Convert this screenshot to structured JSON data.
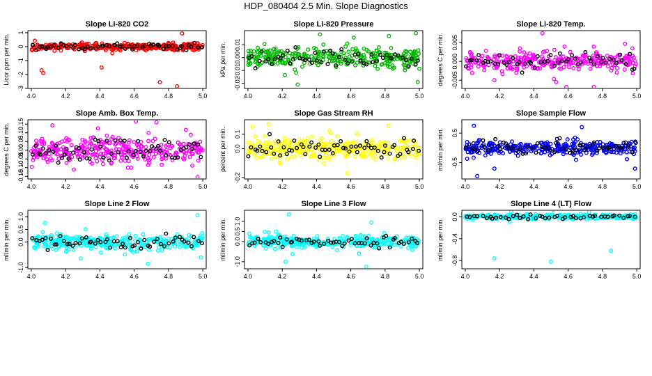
{
  "page_title": "HDP_080404  2.5 Min. Slope Diagnostics",
  "chart_data": [
    {
      "type": "scatter",
      "title": "Slope Li-820 CO2",
      "ylabel": "Licor ppm per min.",
      "color": "#ff0000",
      "xlim": [
        3.98,
        5.02
      ],
      "ylim": [
        -3.0,
        1.15
      ],
      "xticks": [
        "4.0",
        "4.2",
        "4.4",
        "4.6",
        "4.8",
        "5.0"
      ],
      "yticks": [
        "-3",
        "-2",
        "-1",
        "0",
        "1"
      ],
      "spread": 0.22,
      "n_points": 320,
      "outliers": [
        [
          4.06,
          -1.7
        ],
        [
          4.07,
          -1.9
        ],
        [
          4.41,
          -1.5
        ],
        [
          4.75,
          -2.55
        ],
        [
          4.85,
          -2.85
        ],
        [
          4.88,
          0.95
        ]
      ],
      "black_points": 55
    },
    {
      "type": "scatter",
      "title": "Slope Li-820 Pressure",
      "ylabel": "kPa per min.",
      "color": "#00bb00",
      "xlim": [
        3.98,
        5.02
      ],
      "ylim": [
        -0.024,
        0.021
      ],
      "xticks": [
        "4.0",
        "4.2",
        "4.4",
        "4.6",
        "4.8",
        "5.0"
      ],
      "yticks": [
        "-0.02",
        "-0.01",
        "0.00",
        "0.01"
      ],
      "spread": 0.0065,
      "n_points": 320,
      "outliers": [
        [
          4.29,
          -0.021
        ],
        [
          4.42,
          0.018
        ],
        [
          4.98,
          0.019
        ],
        [
          4.99,
          -0.019
        ]
      ],
      "black_points": 55
    },
    {
      "type": "scatter",
      "title": "Slope Li-820 Temp.",
      "ylabel": "degrees C per min.",
      "color": "#ff00ff",
      "xlim": [
        3.98,
        5.02
      ],
      "ylim": [
        -0.0072,
        0.0082
      ],
      "xticks": [
        "4.0",
        "4.2",
        "4.4",
        "4.6",
        "4.8",
        "5.0"
      ],
      "yticks": [
        "-0.005",
        "0.000",
        "0.005"
      ],
      "spread": 0.0022,
      "n_points": 300,
      "outliers": [
        [
          4.45,
          0.0075
        ],
        [
          4.17,
          -0.005
        ],
        [
          4.53,
          -0.0055
        ],
        [
          4.75,
          -0.0068
        ]
      ],
      "black_points": 55
    },
    {
      "type": "scatter",
      "title": "Slope Amb. Box Temp.",
      "ylabel": "degrees C per min.",
      "color": "#ff00ff",
      "xlim": [
        3.98,
        5.02
      ],
      "ylim": [
        -0.165,
        0.175
      ],
      "xticks": [
        "4.0",
        "4.2",
        "4.4",
        "4.6",
        "4.8",
        "5.0"
      ],
      "yticks": [
        "-0.15",
        "-0.10",
        "-0.05",
        "0.00",
        "0.05",
        "0.10",
        "0.15"
      ],
      "spread": 0.065,
      "n_points": 330,
      "outliers": [
        [
          4.61,
          0.165
        ],
        [
          4.73,
          0.16
        ],
        [
          4.97,
          -0.155
        ]
      ],
      "black_points": 60
    },
    {
      "type": "scatter",
      "title": "Slope Gas Stream RH",
      "ylabel": "percent per min.",
      "color": "#ffff00",
      "xlim": [
        3.98,
        5.02
      ],
      "ylim": [
        -0.21,
        0.2
      ],
      "xticks": [
        "4.0",
        "4.2",
        "4.4",
        "4.6",
        "4.8",
        "5.0"
      ],
      "yticks": [
        "-0.2",
        "0.0",
        "0.1"
      ],
      "spread": 0.065,
      "n_points": 330,
      "outliers": [
        [
          4.12,
          0.17
        ],
        [
          4.58,
          -0.17
        ],
        [
          4.82,
          0.16
        ]
      ],
      "black_points": 60
    },
    {
      "type": "scatter",
      "title": "Slope Sample Flow",
      "ylabel": "ml/min per min.",
      "color": "#0000ff",
      "xlim": [
        3.98,
        5.02
      ],
      "ylim": [
        -1.05,
        0.95
      ],
      "xticks": [
        "4.0",
        "4.2",
        "4.4",
        "4.6",
        "4.8",
        "5.0"
      ],
      "yticks": [
        "-0.5",
        "0.5"
      ],
      "spread": 0.2,
      "n_points": 320,
      "outliers": [
        [
          4.05,
          0.75
        ],
        [
          4.07,
          -0.95
        ],
        [
          4.17,
          -0.7
        ],
        [
          4.68,
          0.7
        ],
        [
          4.99,
          -0.7
        ]
      ],
      "black_points": 55
    },
    {
      "type": "scatter",
      "title": "Slope Line 2 Flow",
      "ylabel": "ml/min per min.",
      "color": "#00ffff",
      "xlim": [
        3.98,
        5.02
      ],
      "ylim": [
        -1.05,
        1.25
      ],
      "xticks": [
        "4.0",
        "4.2",
        "4.4",
        "4.6",
        "4.8",
        "5.0"
      ],
      "yticks": [
        "-1.0",
        "0.0",
        "0.5",
        "1.0"
      ],
      "spread": 0.25,
      "n_points": 330,
      "outliers": [
        [
          4.68,
          -0.85
        ],
        [
          4.97,
          1.05
        ],
        [
          4.99,
          -0.6
        ],
        [
          4.08,
          0.75
        ]
      ],
      "black_points": 55
    },
    {
      "type": "scatter",
      "title": "Slope Line 3 Flow",
      "ylabel": "ml/min per min.",
      "color": "#00ffff",
      "xlim": [
        3.98,
        5.02
      ],
      "ylim": [
        -1.35,
        1.55
      ],
      "xticks": [
        "4.0",
        "4.2",
        "4.4",
        "4.6",
        "4.8",
        "5.0"
      ],
      "yticks": [
        "-1.0",
        "0.0",
        "0.5",
        "1.0"
      ],
      "spread": 0.25,
      "n_points": 330,
      "outliers": [
        [
          4.24,
          1.35
        ],
        [
          4.22,
          -1.0
        ],
        [
          4.69,
          -1.25
        ],
        [
          4.72,
          0.95
        ]
      ],
      "black_points": 55
    },
    {
      "type": "scatter",
      "title": "Slope Line 4 (LT) Flow",
      "ylabel": "ml/min per min.",
      "color": "#00ffff",
      "xlim": [
        3.98,
        5.02
      ],
      "ylim": [
        -0.95,
        0.12
      ],
      "xticks": [
        "4.0",
        "4.2",
        "4.4",
        "4.6",
        "4.8",
        "5.0"
      ],
      "yticks": [
        "-0.8",
        "-0.4",
        "0.0"
      ],
      "spread": 0.04,
      "n_points": 300,
      "outliers": [
        [
          4.17,
          -0.76
        ],
        [
          4.5,
          -0.82
        ],
        [
          4.85,
          -0.62
        ]
      ],
      "black_points": 45
    }
  ]
}
